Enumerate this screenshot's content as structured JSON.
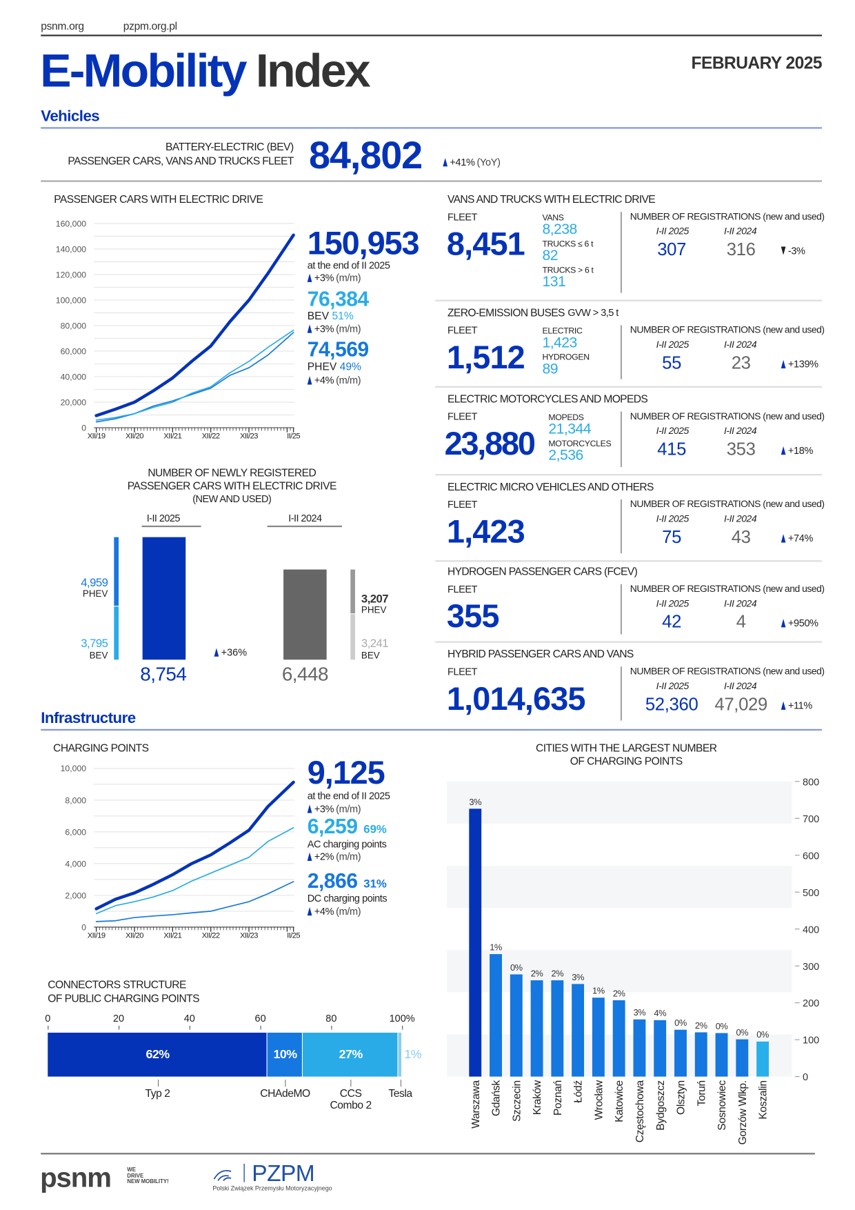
{
  "header": {
    "links": [
      "psnm.org",
      "pzpm.org.pl"
    ],
    "title_blue": "E-Mobility",
    "title_dark": "Index",
    "date": "FEBRUARY 2025"
  },
  "sections": {
    "vehicles": "Vehicles",
    "infrastructure": "Infrastructure"
  },
  "bev_fleet": {
    "label_line1": "BATTERY-ELECTRIC (BEV)",
    "label_line2": "PASSENGER CARS, VANS AND TRUCKS FLEET",
    "value": "84,802",
    "change": "+41%",
    "change_note": "(YoY)"
  },
  "passenger_cars": {
    "title": "PASSENGER CARS WITH ELECTRIC DRIVE",
    "total": "150,953",
    "total_note": "at the end of II 2025",
    "total_change": "+3%",
    "total_change_note": "(m/m)",
    "bev_value": "76,384",
    "bev_label": "BEV",
    "bev_share": "51%",
    "bev_change": "+3%",
    "bev_change_note": "(m/m)",
    "phev_value": "74,569",
    "phev_label": "PHEV",
    "phev_share": "49%",
    "phev_change": "+4%",
    "phev_change_note": "(m/m)"
  },
  "new_registrations": {
    "title_line1": "NUMBER OF NEWLY REGISTERED",
    "title_line2": "PASSENGER CARS WITH ELECTRIC DRIVE",
    "title_line3": "(NEW AND USED)"
  },
  "panels": [
    {
      "title": "VANS AND TRUCKS WITH ELECTRIC DRIVE",
      "title_suffix": "",
      "fleet_label": "FLEET",
      "fleet": "8,451",
      "breakdown": [
        {
          "label": "VANS",
          "value": "8,238"
        },
        {
          "label": "TRUCKS ≤ 6 t",
          "value": "82"
        },
        {
          "label": "TRUCKS > 6 t",
          "value": "131"
        }
      ],
      "reg_label": "NUMBER OF REGISTRATIONS (new and used)",
      "year1": "I-II 2025",
      "year2": "I-II 2024",
      "value1": "307",
      "value2": "316",
      "change": "-3%",
      "direction": "down"
    },
    {
      "title": "ZERO-EMISSION BUSES",
      "title_suffix": "GVW > 3,5 t",
      "fleet_label": "FLEET",
      "fleet": "1,512",
      "breakdown": [
        {
          "label": "ELECTRIC",
          "value": "1,423"
        },
        {
          "label": "HYDROGEN",
          "value": "89"
        }
      ],
      "reg_label": "NUMBER OF REGISTRATIONS (new and used)",
      "year1": "I-II 2025",
      "year2": "I-II 2024",
      "value1": "55",
      "value2": "23",
      "change": "+139%",
      "direction": "up"
    },
    {
      "title": "ELECTRIC MOTORCYCLES AND MOPEDS",
      "title_suffix": "",
      "fleet_label": "FLEET",
      "fleet": "23,880",
      "breakdown": [
        {
          "label": "MOPEDS",
          "value": "21,344"
        },
        {
          "label": "MOTORCYCLES",
          "value": "2,536"
        }
      ],
      "reg_label": "NUMBER OF REGISTRATIONS (new and used)",
      "year1": "I-II 2025",
      "year2": "I-II 2024",
      "value1": "415",
      "value2": "353",
      "change": "+18%",
      "direction": "up"
    },
    {
      "title": "ELECTRIC MICRO VEHICLES AND OTHERS",
      "title_suffix": "",
      "fleet_label": "FLEET",
      "fleet": "1,423",
      "breakdown": [],
      "reg_label": "NUMBER OF REGISTRATIONS (new and used)",
      "year1": "I-II 2025",
      "year2": "I-II 2024",
      "value1": "75",
      "value2": "43",
      "change": "+74%",
      "direction": "up"
    },
    {
      "title": "HYDROGEN PASSENGER CARS (FCEV)",
      "title_suffix": "",
      "fleet_label": "FLEET",
      "fleet": "355",
      "breakdown": [],
      "reg_label": "NUMBER OF REGISTRATIONS (new and used)",
      "year1": "I-II 2025",
      "year2": "I-II 2024",
      "value1": "42",
      "value2": "4",
      "change": "+950%",
      "direction": "up"
    },
    {
      "title": "HYBRID PASSENGER CARS AND VANS",
      "title_suffix": "",
      "fleet_label": "FLEET",
      "fleet": "1,014,635",
      "breakdown": [],
      "reg_label": "NUMBER OF REGISTRATIONS (new and used)",
      "year1": "I-II 2025",
      "year2": "I-II 2024",
      "value1": "52,360",
      "value2": "47,029",
      "change": "+11%",
      "direction": "up"
    }
  ],
  "charging_points": {
    "title": "CHARGING POINTS",
    "total": "9,125",
    "total_note": "at the end of II 2025",
    "total_change": "+3%",
    "total_change_note": "(m/m)",
    "ac_value": "6,259",
    "ac_share": "69%",
    "ac_label": "AC charging points",
    "ac_change": "+2%",
    "ac_change_note": "(m/m)",
    "dc_value": "2,866",
    "dc_share": "31%",
    "dc_label": "DC charging points",
    "dc_change": "+4%",
    "dc_change_note": "(m/m)"
  },
  "connectors": {
    "title_line1": "CONNECTORS STRUCTURE",
    "title_line2": "OF PUBLIC CHARGING POINTS"
  },
  "cities": {
    "title_line1": "CITIES WITH THE LARGEST NUMBER",
    "title_line2": "OF CHARGING POINTS"
  },
  "footer": {
    "psnm_logo": "psnm",
    "psnm_tagline": [
      "WE",
      "DRIVE",
      "NEW MOBILITY!"
    ],
    "pzpm_logo": "PZPM",
    "pzpm_name": "Polski Związek Przemysłu Motoryzacyjnego"
  },
  "colors": {
    "dark_blue": "#0433b8",
    "mid_blue": "#1577e0",
    "light_blue": "#29abe8",
    "gray": "#666666",
    "text": "#222222"
  },
  "chart_data": [
    {
      "type": "line",
      "title": "PASSENGER CARS WITH ELECTRIC DRIVE",
      "y_ticks": [
        "0",
        "20,000",
        "40,000",
        "60,000",
        "80,000",
        "100,000",
        "120,000",
        "140,000",
        "160,000"
      ],
      "x_ticks": [
        "XII/19",
        "XII/20",
        "XII/21",
        "XII/22",
        "XII/23",
        "II/25"
      ],
      "ylim": [
        0,
        160000
      ],
      "xlim": [
        "2019-12",
        "2025-02"
      ],
      "grid": true,
      "series": [
        {
          "name": "total",
          "color": "#0433b8",
          "points": [
            [
              "2019-12",
              9500
            ],
            [
              "2020-06",
              14500
            ],
            [
              "2020-12",
              20000
            ],
            [
              "2021-06",
              29000
            ],
            [
              "2021-12",
              39000
            ],
            [
              "2022-06",
              52000
            ],
            [
              "2022-12",
              64000
            ],
            [
              "2023-06",
              83000
            ],
            [
              "2023-12",
              100000
            ],
            [
              "2024-06",
              121000
            ],
            [
              "2025-02",
              150953
            ]
          ]
        },
        {
          "name": "BEV",
          "color": "#29abe8",
          "points": [
            [
              "2019-12",
              6000
            ],
            [
              "2020-06",
              8000
            ],
            [
              "2020-12",
              11000
            ],
            [
              "2021-06",
              16000
            ],
            [
              "2021-12",
              20000
            ],
            [
              "2022-06",
              27000
            ],
            [
              "2022-12",
              32000
            ],
            [
              "2023-06",
              43000
            ],
            [
              "2023-12",
              52000
            ],
            [
              "2024-06",
              63000
            ],
            [
              "2025-02",
              76384
            ]
          ]
        },
        {
          "name": "PHEV",
          "color": "#1577e0",
          "points": [
            [
              "2019-12",
              4500
            ],
            [
              "2020-06",
              7000
            ],
            [
              "2020-12",
              11000
            ],
            [
              "2021-06",
              17000
            ],
            [
              "2021-12",
              21000
            ],
            [
              "2022-06",
              26000
            ],
            [
              "2022-12",
              31000
            ],
            [
              "2023-06",
              41000
            ],
            [
              "2023-12",
              47000
            ],
            [
              "2024-06",
              57000
            ],
            [
              "2025-02",
              74569
            ]
          ]
        }
      ]
    },
    {
      "type": "bar",
      "title": "NUMBER OF NEWLY REGISTERED PASSENGER CARS WITH ELECTRIC DRIVE (NEW AND USED)",
      "categories": [
        "I-II 2025",
        "I-II 2024"
      ],
      "totals": [
        8754,
        6448
      ],
      "total_labels": [
        "8,754",
        "6,448"
      ],
      "series": [
        {
          "name": "PHEV",
          "values": [
            4959,
            3207
          ],
          "labels": [
            "4,959",
            "3,207"
          ]
        },
        {
          "name": "BEV",
          "values": [
            3795,
            3241
          ],
          "labels": [
            "3,795",
            "3,241"
          ]
        }
      ],
      "change": "+36%"
    },
    {
      "type": "line",
      "title": "CHARGING POINTS",
      "y_ticks": [
        "0",
        "2,000",
        "4,000",
        "6,000",
        "8,000",
        "10,000"
      ],
      "x_ticks": [
        "XII/19",
        "XII/20",
        "XII/21",
        "XII/22",
        "XII/23",
        "II/25"
      ],
      "ylim": [
        0,
        10000
      ],
      "xlim": [
        "2019-12",
        "2025-02"
      ],
      "grid": true,
      "series": [
        {
          "name": "total",
          "color": "#0433b8",
          "points": [
            [
              "2019-12",
              1150
            ],
            [
              "2020-06",
              1750
            ],
            [
              "2020-12",
              2150
            ],
            [
              "2021-06",
              2700
            ],
            [
              "2021-12",
              3300
            ],
            [
              "2022-06",
              4000
            ],
            [
              "2022-12",
              4550
            ],
            [
              "2023-06",
              5300
            ],
            [
              "2023-12",
              6100
            ],
            [
              "2024-06",
              7600
            ],
            [
              "2025-02",
              9125
            ]
          ]
        },
        {
          "name": "AC",
          "color": "#29abe8",
          "points": [
            [
              "2019-12",
              850
            ],
            [
              "2020-06",
              1350
            ],
            [
              "2020-12",
              1600
            ],
            [
              "2021-06",
              1900
            ],
            [
              "2021-12",
              2300
            ],
            [
              "2022-06",
              2900
            ],
            [
              "2022-12",
              3400
            ],
            [
              "2023-06",
              3900
            ],
            [
              "2023-12",
              4400
            ],
            [
              "2024-06",
              5400
            ],
            [
              "2025-02",
              6259
            ]
          ]
        },
        {
          "name": "DC",
          "color": "#1577e0",
          "points": [
            [
              "2019-12",
              350
            ],
            [
              "2020-06",
              400
            ],
            [
              "2020-12",
              600
            ],
            [
              "2021-06",
              700
            ],
            [
              "2021-12",
              780
            ],
            [
              "2022-06",
              900
            ],
            [
              "2022-12",
              1000
            ],
            [
              "2023-06",
              1300
            ],
            [
              "2023-12",
              1600
            ],
            [
              "2024-06",
              2100
            ],
            [
              "2025-02",
              2866
            ]
          ]
        }
      ]
    },
    {
      "type": "bar",
      "orientation": "horizontal-stacked",
      "title": "CONNECTORS STRUCTURE OF PUBLIC CHARGING POINTS",
      "x_ticks": [
        "0",
        "20",
        "40",
        "60",
        "80",
        "100%"
      ],
      "categories": [
        "Typ 2",
        "CHAdeMO",
        "CCS Combo 2",
        "Tesla"
      ],
      "category_lines": [
        [
          "Typ 2"
        ],
        [
          "CHAdeMO"
        ],
        [
          "CCS",
          "Combo 2"
        ],
        [
          "Tesla"
        ]
      ],
      "values": [
        62,
        10,
        27,
        1
      ],
      "labels": [
        "62%",
        "10%",
        "27%",
        "1%"
      ],
      "colors": [
        "#0433b8",
        "#1577e0",
        "#29abe8",
        "#8ccbf0"
      ]
    },
    {
      "type": "bar",
      "title": "CITIES WITH THE LARGEST NUMBER OF CHARGING POINTS",
      "categories": [
        "Warszawa",
        "Gdańsk",
        "Szczecin",
        "Kraków",
        "Poznań",
        "Łódź",
        "Wrocław",
        "Katowice",
        "Częstochowa",
        "Bydgoszcz",
        "Olsztyn",
        "Toruń",
        "Sosnowiec",
        "Gorzów Wlkp.",
        "Koszalin"
      ],
      "values": [
        726,
        332,
        277,
        261,
        261,
        251,
        214,
        207,
        155,
        153,
        127,
        120,
        118,
        101,
        95
      ],
      "labels": [
        "3%",
        "1%",
        "0%",
        "2%",
        "2%",
        "3%",
        "1%",
        "2%",
        "3%",
        "4%",
        "0%",
        "2%",
        "0%",
        "0%",
        "0%"
      ],
      "y_ticks": [
        "0",
        "100",
        "200",
        "300",
        "400",
        "500",
        "600",
        "700",
        "800"
      ],
      "ylim": [
        0,
        800
      ],
      "y_axis": "right",
      "colors": [
        "#0433b8",
        "#1577e0",
        "#1577e0",
        "#1577e0",
        "#1577e0",
        "#1577e0",
        "#1577e0",
        "#1577e0",
        "#1577e0",
        "#1577e0",
        "#1577e0",
        "#1577e0",
        "#1577e0",
        "#1577e0",
        "#29b0ea"
      ]
    }
  ]
}
